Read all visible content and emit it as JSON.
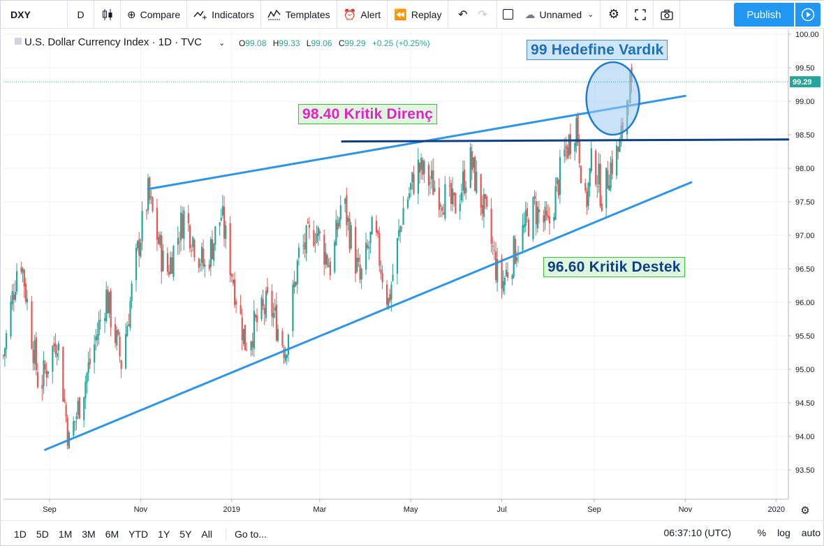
{
  "toolbar": {
    "symbol": "DXY",
    "interval": "D",
    "compare": "Compare",
    "indicators": "Indicators",
    "templates": "Templates",
    "alert": "Alert",
    "replay": "Replay",
    "layout_name": "Unnamed",
    "publish": "Publish",
    "icons": [
      "candles-icon",
      "plus-circle-icon",
      "indicators-icon",
      "templates-icon",
      "alarm-clock-icon",
      "replay-icon",
      "undo-icon",
      "redo-icon",
      "square-icon",
      "cloud-icon",
      "gear-icon",
      "fullscreen-icon",
      "camera-icon",
      "play-icon"
    ]
  },
  "legend": {
    "title": "U.S. Dollar Currency Index · 1D · TVC",
    "o_label": "O",
    "o": "99.08",
    "h_label": "H",
    "h": "99.33",
    "l_label": "L",
    "l": "99.06",
    "c_label": "C",
    "c": "99.29",
    "change": "+0.25 (+0.25%)"
  },
  "annotations": {
    "target": "99 Hedefine Vardık",
    "resistance": "98.40 Kritik Direnç",
    "support": "96.60 Kritik Destek"
  },
  "chart_data": {
    "type": "candlestick",
    "symbol": "DXY",
    "interval": "1D",
    "ylim": [
      93.1,
      100.1
    ],
    "y_ticks": [
      "100.00",
      "99.50",
      "99.00",
      "98.50",
      "98.00",
      "97.50",
      "97.00",
      "96.50",
      "96.00",
      "95.50",
      "95.00",
      "94.50",
      "94.00",
      "93.50"
    ],
    "x_ticks": [
      "Sep",
      "Nov",
      "2019",
      "Mar",
      "May",
      "Jul",
      "Sep",
      "Nov",
      "2020"
    ],
    "last_price": "99.29",
    "colors": {
      "up": "#26a69a",
      "down": "#ef5350",
      "trend": "#2e95e6",
      "level": "#0d3f87"
    },
    "trendlines": [
      {
        "name": "upper-channel",
        "from": [
          "2018-11-06",
          97.69
        ],
        "to": [
          "2019-11-01",
          99.08
        ]
      },
      {
        "name": "lower-channel",
        "from": [
          "2018-08-29",
          93.8
        ],
        "to": [
          "2019-11-05",
          97.79
        ]
      },
      {
        "name": "resistance",
        "from": [
          "2019-03-16",
          98.4
        ],
        "to": [
          "2020-01-09",
          98.43
        ]
      }
    ],
    "highlight_circle": {
      "center": [
        "2019-09-13",
        99.0
      ],
      "label": "99 Hedefine Vardık"
    },
    "path": [
      [
        "2018-08-01",
        95.2
      ],
      [
        "2018-08-12",
        96.8
      ],
      [
        "2018-08-25",
        94.7
      ],
      [
        "2018-09-06",
        95.5
      ],
      [
        "2018-09-14",
        93.9
      ],
      [
        "2018-09-28",
        95.1
      ],
      [
        "2018-10-09",
        96.1
      ],
      [
        "2018-10-19",
        95.1
      ],
      [
        "2018-10-31",
        96.9
      ],
      [
        "2018-11-06",
        97.6
      ],
      [
        "2018-11-18",
        96.4
      ],
      [
        "2018-11-30",
        97.3
      ],
      [
        "2018-12-14",
        96.5
      ],
      [
        "2018-12-25",
        97.3
      ],
      [
        "2019-01-10",
        95.4
      ],
      [
        "2019-01-26",
        96.0
      ],
      [
        "2019-02-06",
        95.3
      ],
      [
        "2019-02-15",
        96.7
      ],
      [
        "2019-02-26",
        97.1
      ],
      [
        "2019-03-09",
        96.5
      ],
      [
        "2019-03-16",
        97.6
      ],
      [
        "2019-03-28",
        96.3
      ],
      [
        "2019-04-06",
        97.1
      ],
      [
        "2019-04-16",
        96.0
      ],
      [
        "2019-04-26",
        97.4
      ],
      [
        "2019-05-06",
        98.0
      ],
      [
        "2019-05-18",
        97.7
      ],
      [
        "2019-05-30",
        97.4
      ],
      [
        "2019-06-10",
        98.1
      ],
      [
        "2019-06-21",
        97.2
      ],
      [
        "2019-06-30",
        96.2
      ],
      [
        "2019-07-12",
        96.9
      ],
      [
        "2019-07-23",
        97.4
      ],
      [
        "2019-08-01",
        97.1
      ],
      [
        "2019-08-12",
        98.2
      ],
      [
        "2019-08-20",
        98.7
      ],
      [
        "2019-08-26",
        97.4
      ],
      [
        "2019-08-31",
        98.2
      ],
      [
        "2019-09-07",
        97.5
      ],
      [
        "2019-09-11",
        98.0
      ],
      [
        "2019-09-18",
        98.3
      ],
      [
        "2019-09-24",
        99.2
      ],
      [
        "2019-09-26",
        99.29
      ]
    ]
  },
  "bottombar": {
    "ranges": [
      "1D",
      "5D",
      "1M",
      "3M",
      "6M",
      "YTD",
      "1Y",
      "5Y",
      "All"
    ],
    "goto": "Go to...",
    "clock": "06:37:10 (UTC)",
    "percent": "%",
    "log": "log",
    "auto": "auto"
  }
}
